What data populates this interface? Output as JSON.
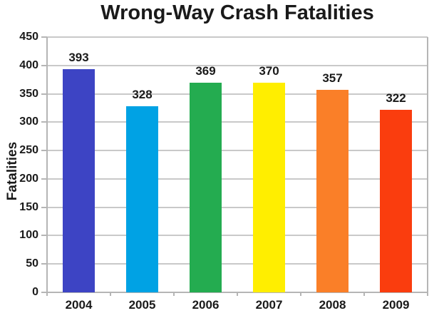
{
  "chart_data": {
    "type": "bar",
    "title": "Wrong-Way Crash Fatalities",
    "xlabel": "",
    "ylabel": "Fatalities",
    "categories": [
      "2004",
      "2005",
      "2006",
      "2007",
      "2008",
      "2009"
    ],
    "values": [
      393,
      328,
      369,
      370,
      357,
      322
    ],
    "ylim": [
      0,
      450
    ],
    "ytick_step": 50,
    "grid": true,
    "legend": false,
    "bar_colors": [
      "#3D44C4",
      "#00A2E4",
      "#24AC50",
      "#FFEE00",
      "#FA7F28",
      "#FA3D0E"
    ],
    "gridline_color": "#C9C9C9",
    "axis_color": "#B5B5B5",
    "text_color": "#1A1A1A",
    "background_color": "#FFFFFF"
  }
}
